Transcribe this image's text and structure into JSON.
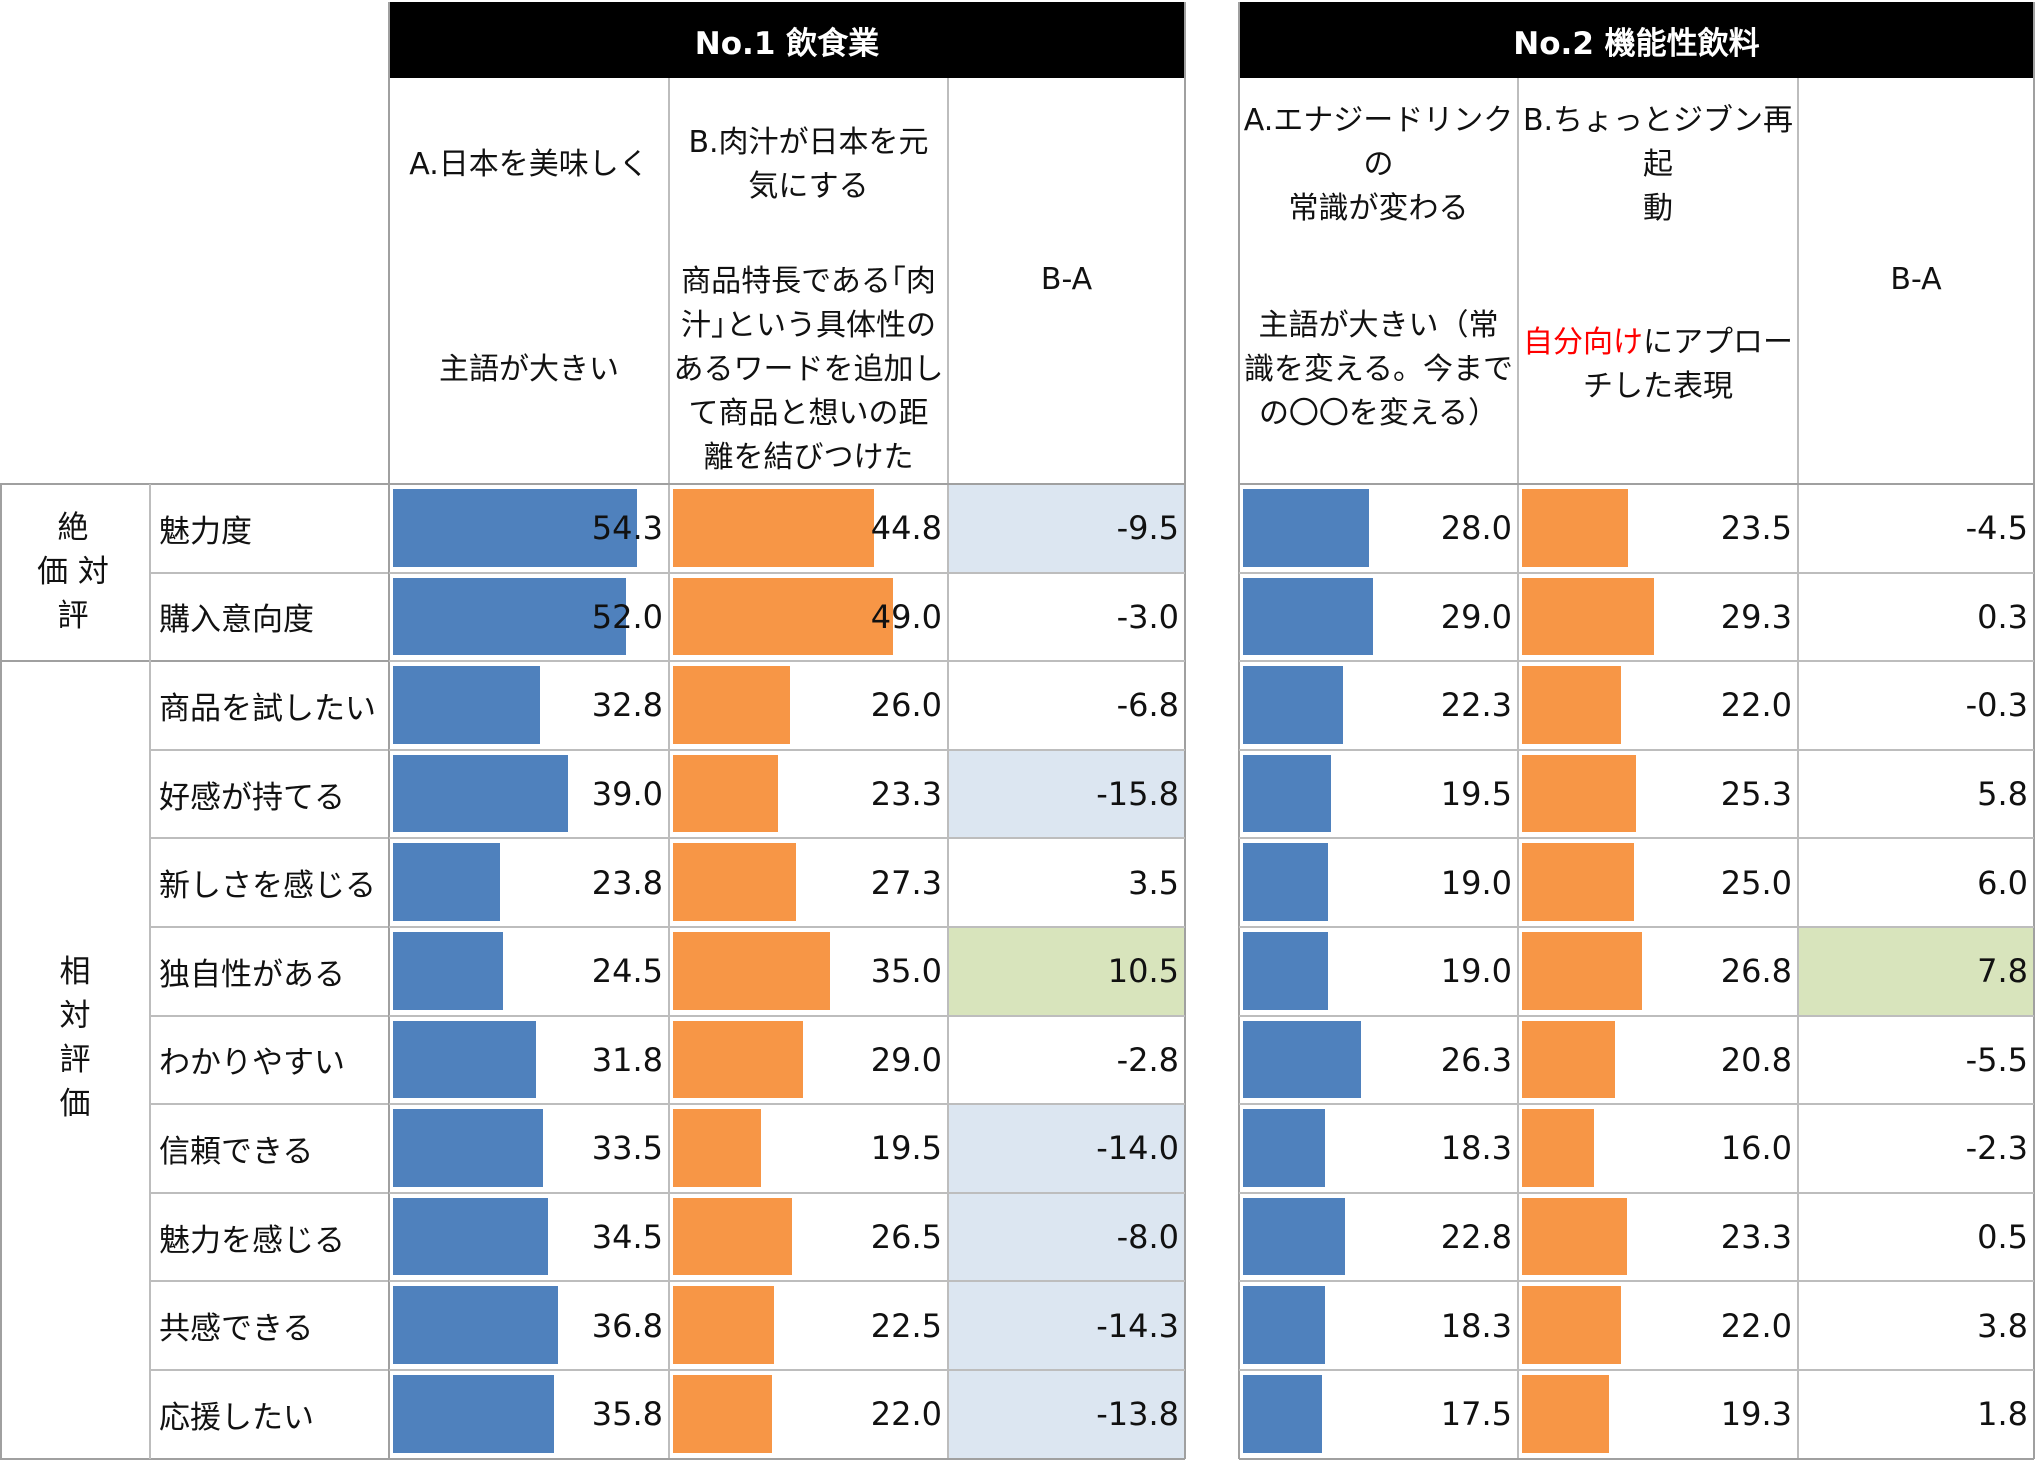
{
  "colors": {
    "bar_a": "#4f81bd",
    "bar_b": "#f79646",
    "shade_negative": "#dce6f1",
    "shade_positive": "#d8e4bc",
    "header_bg": "#000000",
    "highlight_text": "#ff0000"
  },
  "row_groups": [
    {
      "label": "絶\n価 対\n評",
      "rows": 2
    },
    {
      "label": "相\n対\n評\n価",
      "rows": 9
    }
  ],
  "rows": [
    "魅力度",
    "購入意向度",
    "商品を試したい",
    "好感が持てる",
    "新しさを感じる",
    "独自性がある",
    "わかりやすい",
    "信頼できる",
    "魅力を感じる",
    "共感できる",
    "応援したい"
  ],
  "panels": [
    {
      "title": "No.1 飲食業",
      "col_a": {
        "title": "A.日本を美味しく",
        "desc": "主語が大きい"
      },
      "col_b": {
        "title": "B.肉汁が日本を元\n気にする",
        "desc": "商品特長である｢肉\n汁｣という具体性の\nあるワードを追加し\nて商品と想いの距\n離を結びつけた"
      },
      "col_diff": {
        "title": "B-A"
      },
      "values_a": [
        "54.3",
        "52.0",
        "32.8",
        "39.0",
        "23.8",
        "24.5",
        "31.8",
        "33.5",
        "34.5",
        "36.8",
        "35.8"
      ],
      "values_b": [
        "44.8",
        "49.0",
        "26.0",
        "23.3",
        "27.3",
        "35.0",
        "29.0",
        "19.5",
        "26.5",
        "22.5",
        "22.0"
      ],
      "values_diff": [
        "-9.5",
        "-3.0",
        "-6.8",
        "-15.8",
        "3.5",
        "10.5",
        "-2.8",
        "-14.0",
        "-8.0",
        "-14.3",
        "-13.8"
      ],
      "shade": [
        "neg",
        "",
        "",
        "neg",
        "",
        "pos",
        "",
        "neg",
        "neg",
        "neg",
        "neg"
      ]
    },
    {
      "title": "No.2 機能性飲料",
      "col_a": {
        "title": "A.エナジードリンクの\n常識が変わる",
        "desc": "主語が大きい（常\n識を変える。今まで\nの〇〇を変える）"
      },
      "col_b": {
        "title": "B.ちょっとジブン再起\n動",
        "desc_highlight": "自分向け",
        "desc_rest": "にアプロー",
        "desc_line2": "チした表現"
      },
      "col_diff": {
        "title": "B-A"
      },
      "values_a": [
        "28.0",
        "29.0",
        "22.3",
        "19.5",
        "19.0",
        "19.0",
        "26.3",
        "18.3",
        "22.8",
        "18.3",
        "17.5"
      ],
      "values_b": [
        "23.5",
        "29.3",
        "22.0",
        "25.3",
        "25.0",
        "26.8",
        "20.8",
        "16.0",
        "23.3",
        "22.0",
        "19.3"
      ],
      "values_diff": [
        "-4.5",
        "0.3",
        "-0.3",
        "5.8",
        "6.0",
        "7.8",
        "-5.5",
        "-2.3",
        "0.5",
        "3.8",
        "1.8"
      ],
      "shade": [
        "",
        "",
        "",
        "",
        "",
        "pos",
        "",
        "",
        "",
        "",
        ""
      ]
    }
  ],
  "chart_data": [
    {
      "type": "bar",
      "title": "No.1 飲食業",
      "categories": [
        "魅力度",
        "購入意向度",
        "商品を試したい",
        "好感が持てる",
        "新しさを感じる",
        "独自性がある",
        "わかりやすい",
        "信頼できる",
        "魅力を感じる",
        "共感できる",
        "応援したい"
      ],
      "series": [
        {
          "name": "A.日本を美味しく",
          "values": [
            54.3,
            52.0,
            32.8,
            39.0,
            23.8,
            24.5,
            31.8,
            33.5,
            34.5,
            36.8,
            35.8
          ]
        },
        {
          "name": "B.肉汁が日本を元気にする",
          "values": [
            44.8,
            49.0,
            26.0,
            23.3,
            27.3,
            35.0,
            29.0,
            19.5,
            26.5,
            22.5,
            22.0
          ]
        },
        {
          "name": "B-A",
          "values": [
            -9.5,
            -3.0,
            -6.8,
            -15.8,
            3.5,
            10.5,
            -2.8,
            -14.0,
            -8.0,
            -14.3,
            -13.8
          ]
        }
      ]
    },
    {
      "type": "bar",
      "title": "No.2 機能性飲料",
      "categories": [
        "魅力度",
        "購入意向度",
        "商品を試したい",
        "好感が持てる",
        "新しさを感じる",
        "独自性がある",
        "わかりやすい",
        "信頼できる",
        "魅力を感じる",
        "共感できる",
        "応援したい"
      ],
      "series": [
        {
          "name": "A.エナジードリンクの常識が変わる",
          "values": [
            28.0,
            29.0,
            22.3,
            19.5,
            19.0,
            19.0,
            26.3,
            18.3,
            22.8,
            18.3,
            17.5
          ]
        },
        {
          "name": "B.ちょっとジブン再起動",
          "values": [
            23.5,
            29.3,
            22.0,
            25.3,
            25.0,
            26.8,
            20.8,
            16.0,
            23.3,
            22.0,
            19.3
          ]
        },
        {
          "name": "B-A",
          "values": [
            -4.5,
            0.3,
            -0.3,
            5.8,
            6.0,
            7.8,
            -5.5,
            -2.3,
            0.5,
            3.8,
            1.8
          ]
        }
      ]
    }
  ]
}
